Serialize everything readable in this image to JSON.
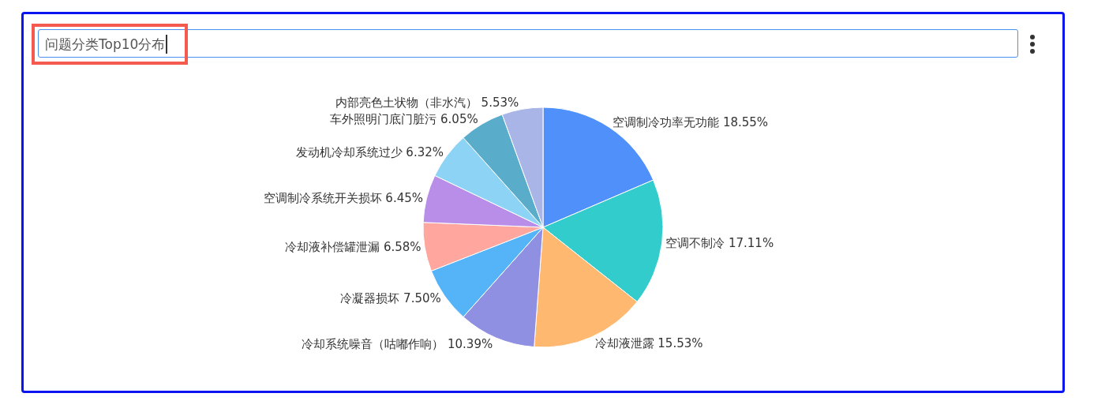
{
  "chart_data": {
    "type": "pie",
    "title": "问题分类Top10分布",
    "categories": [
      "空调制冷功率无功能",
      "空调不制冷",
      "冷却液泄露",
      "冷却系统噪音（咕嘟作响）",
      "冷凝器损坏",
      "冷却液补偿罐泄漏",
      "空调制冷系统开关损坏",
      "发动机冷却系统过少",
      "车外照明门底门脏污",
      "内部亮色土状物（非水汽）"
    ],
    "values": [
      18.55,
      17.11,
      15.53,
      10.39,
      7.5,
      6.58,
      6.45,
      6.32,
      6.05,
      5.53
    ],
    "value_labels": [
      "18.55%",
      "17.11%",
      "15.53%",
      "10.39%",
      "7.50%",
      "6.58%",
      "6.45%",
      "6.32%",
      "6.05%",
      "5.53%"
    ],
    "colors": [
      "#5090fa",
      "#33cccc",
      "#ffb870",
      "#9090e3",
      "#55b4f7",
      "#ffa69e",
      "#b98ee8",
      "#8dd3f5",
      "#5aaccb",
      "#a8b5e6"
    ]
  }
}
